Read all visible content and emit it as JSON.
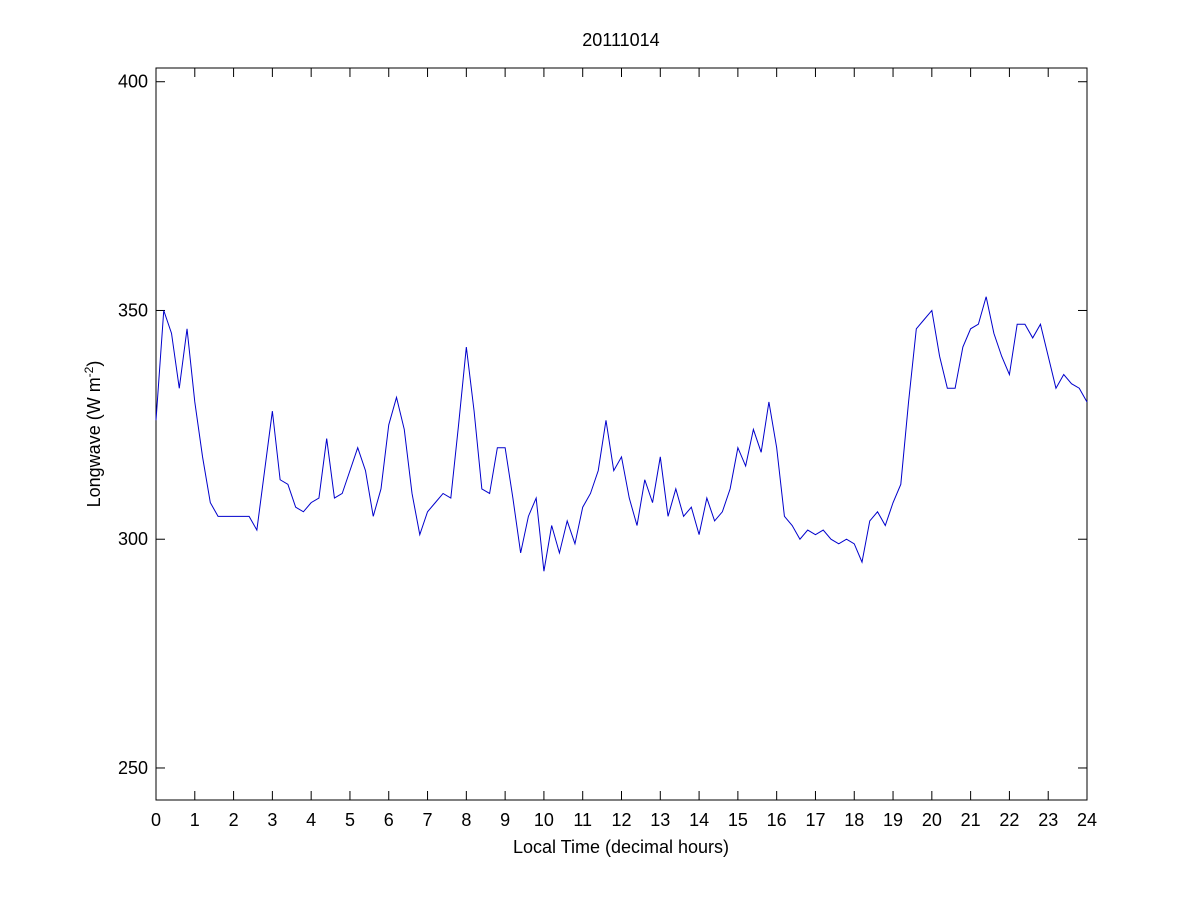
{
  "chart_data": {
    "type": "line",
    "title": "20111014",
    "xlabel": "Local Time (decimal hours)",
    "ylabel": {
      "text": "Longwave (W m",
      "sup": "-2",
      "suffix": ")"
    },
    "xlim": [
      0,
      24
    ],
    "ylim": [
      243,
      403
    ],
    "xticks": [
      0,
      1,
      2,
      3,
      4,
      5,
      6,
      7,
      8,
      9,
      10,
      11,
      12,
      13,
      14,
      15,
      16,
      17,
      18,
      19,
      20,
      21,
      22,
      23,
      24
    ],
    "yticks": [
      250,
      300,
      350,
      400
    ],
    "x": [
      0,
      0.2,
      0.4,
      0.6,
      0.8,
      1,
      1.2,
      1.4,
      1.6,
      1.8,
      2,
      2.2,
      2.4,
      2.6,
      2.8,
      3,
      3.2,
      3.4,
      3.6,
      3.8,
      4,
      4.2,
      4.4,
      4.6,
      4.8,
      5,
      5.2,
      5.4,
      5.6,
      5.8,
      6,
      6.2,
      6.4,
      6.6,
      6.8,
      7,
      7.2,
      7.4,
      7.6,
      7.8,
      8,
      8.2,
      8.4,
      8.6,
      8.8,
      9,
      9.2,
      9.4,
      9.6,
      9.8,
      10,
      10.2,
      10.4,
      10.6,
      10.8,
      11,
      11.2,
      11.4,
      11.6,
      11.8,
      12,
      12.2,
      12.4,
      12.6,
      12.8,
      13,
      13.2,
      13.4,
      13.6,
      13.8,
      14,
      14.2,
      14.4,
      14.6,
      14.8,
      15,
      15.2,
      15.4,
      15.6,
      15.8,
      16,
      16.2,
      16.4,
      16.6,
      16.8,
      17,
      17.2,
      17.4,
      17.6,
      17.8,
      18,
      18.2,
      18.4,
      18.6,
      18.8,
      19,
      19.2,
      19.4,
      19.6,
      19.8,
      20,
      20.2,
      20.4,
      20.6,
      20.8,
      21,
      21.2,
      21.4,
      21.6,
      21.8,
      22,
      22.2,
      22.4,
      22.6,
      22.8,
      23,
      23.2,
      23.4,
      23.6,
      23.8,
      24
    ],
    "series": [
      {
        "color": "#0000cc",
        "values": [
          326,
          350,
          345,
          333,
          346,
          330,
          318,
          308,
          305,
          305,
          305,
          305,
          305,
          302,
          315,
          328,
          313,
          312,
          307,
          306,
          308,
          309,
          322,
          309,
          310,
          315,
          320,
          315,
          305,
          311,
          325,
          331,
          324,
          310,
          301,
          306,
          308,
          310,
          309,
          325,
          342,
          328,
          311,
          310,
          320,
          320,
          309,
          297,
          305,
          309,
          293,
          303,
          297,
          304,
          299,
          307,
          310,
          315,
          326,
          315,
          318,
          309,
          303,
          313,
          308,
          318,
          305,
          311,
          305,
          307,
          301,
          309,
          304,
          306,
          311,
          320,
          316,
          324,
          319,
          330,
          320,
          305,
          303,
          300,
          302,
          301,
          302,
          300,
          299,
          300,
          299,
          295,
          304,
          306,
          303,
          308,
          312,
          330,
          346,
          348,
          350,
          340,
          333,
          333,
          342,
          346,
          347,
          353,
          345,
          340,
          336,
          347,
          347,
          344,
          347,
          340,
          333,
          336,
          334,
          333,
          330
        ]
      }
    ]
  }
}
